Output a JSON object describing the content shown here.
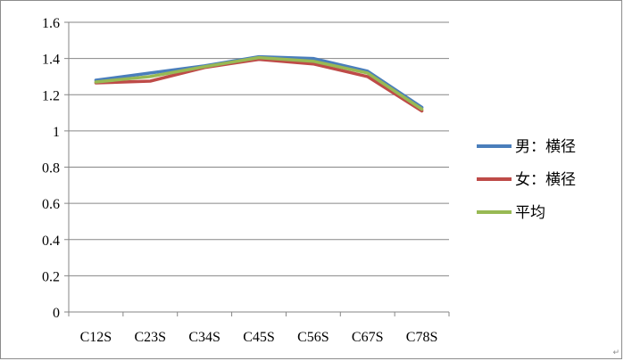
{
  "chart_data": {
    "type": "line",
    "categories": [
      "C12S",
      "C23S",
      "C34S",
      "C45S",
      "C56S",
      "C67S",
      "C78S"
    ],
    "series": [
      {
        "name": "男：横径",
        "color": "#4a7ebb",
        "values": [
          1.28,
          1.32,
          1.36,
          1.41,
          1.4,
          1.33,
          1.13
        ]
      },
      {
        "name": "女：横径",
        "color": "#be4b48",
        "values": [
          1.265,
          1.275,
          1.35,
          1.395,
          1.37,
          1.3,
          1.11
        ]
      },
      {
        "name": "平均",
        "color": "#98b954",
        "values": [
          1.27,
          1.3,
          1.355,
          1.405,
          1.385,
          1.32,
          1.12
        ]
      }
    ],
    "yticks": [
      0,
      0.2,
      0.4,
      0.6,
      0.8,
      1,
      1.2,
      1.4,
      1.6
    ],
    "ytick_labels": [
      "0",
      "0.2",
      "0.4",
      "0.6",
      "0.8",
      "1",
      "1.2",
      "1.4",
      "1.6"
    ],
    "ylim": [
      0,
      1.6
    ],
    "grid": true,
    "legend_position": "right",
    "title": "",
    "xlabel": "",
    "ylabel": ""
  }
}
